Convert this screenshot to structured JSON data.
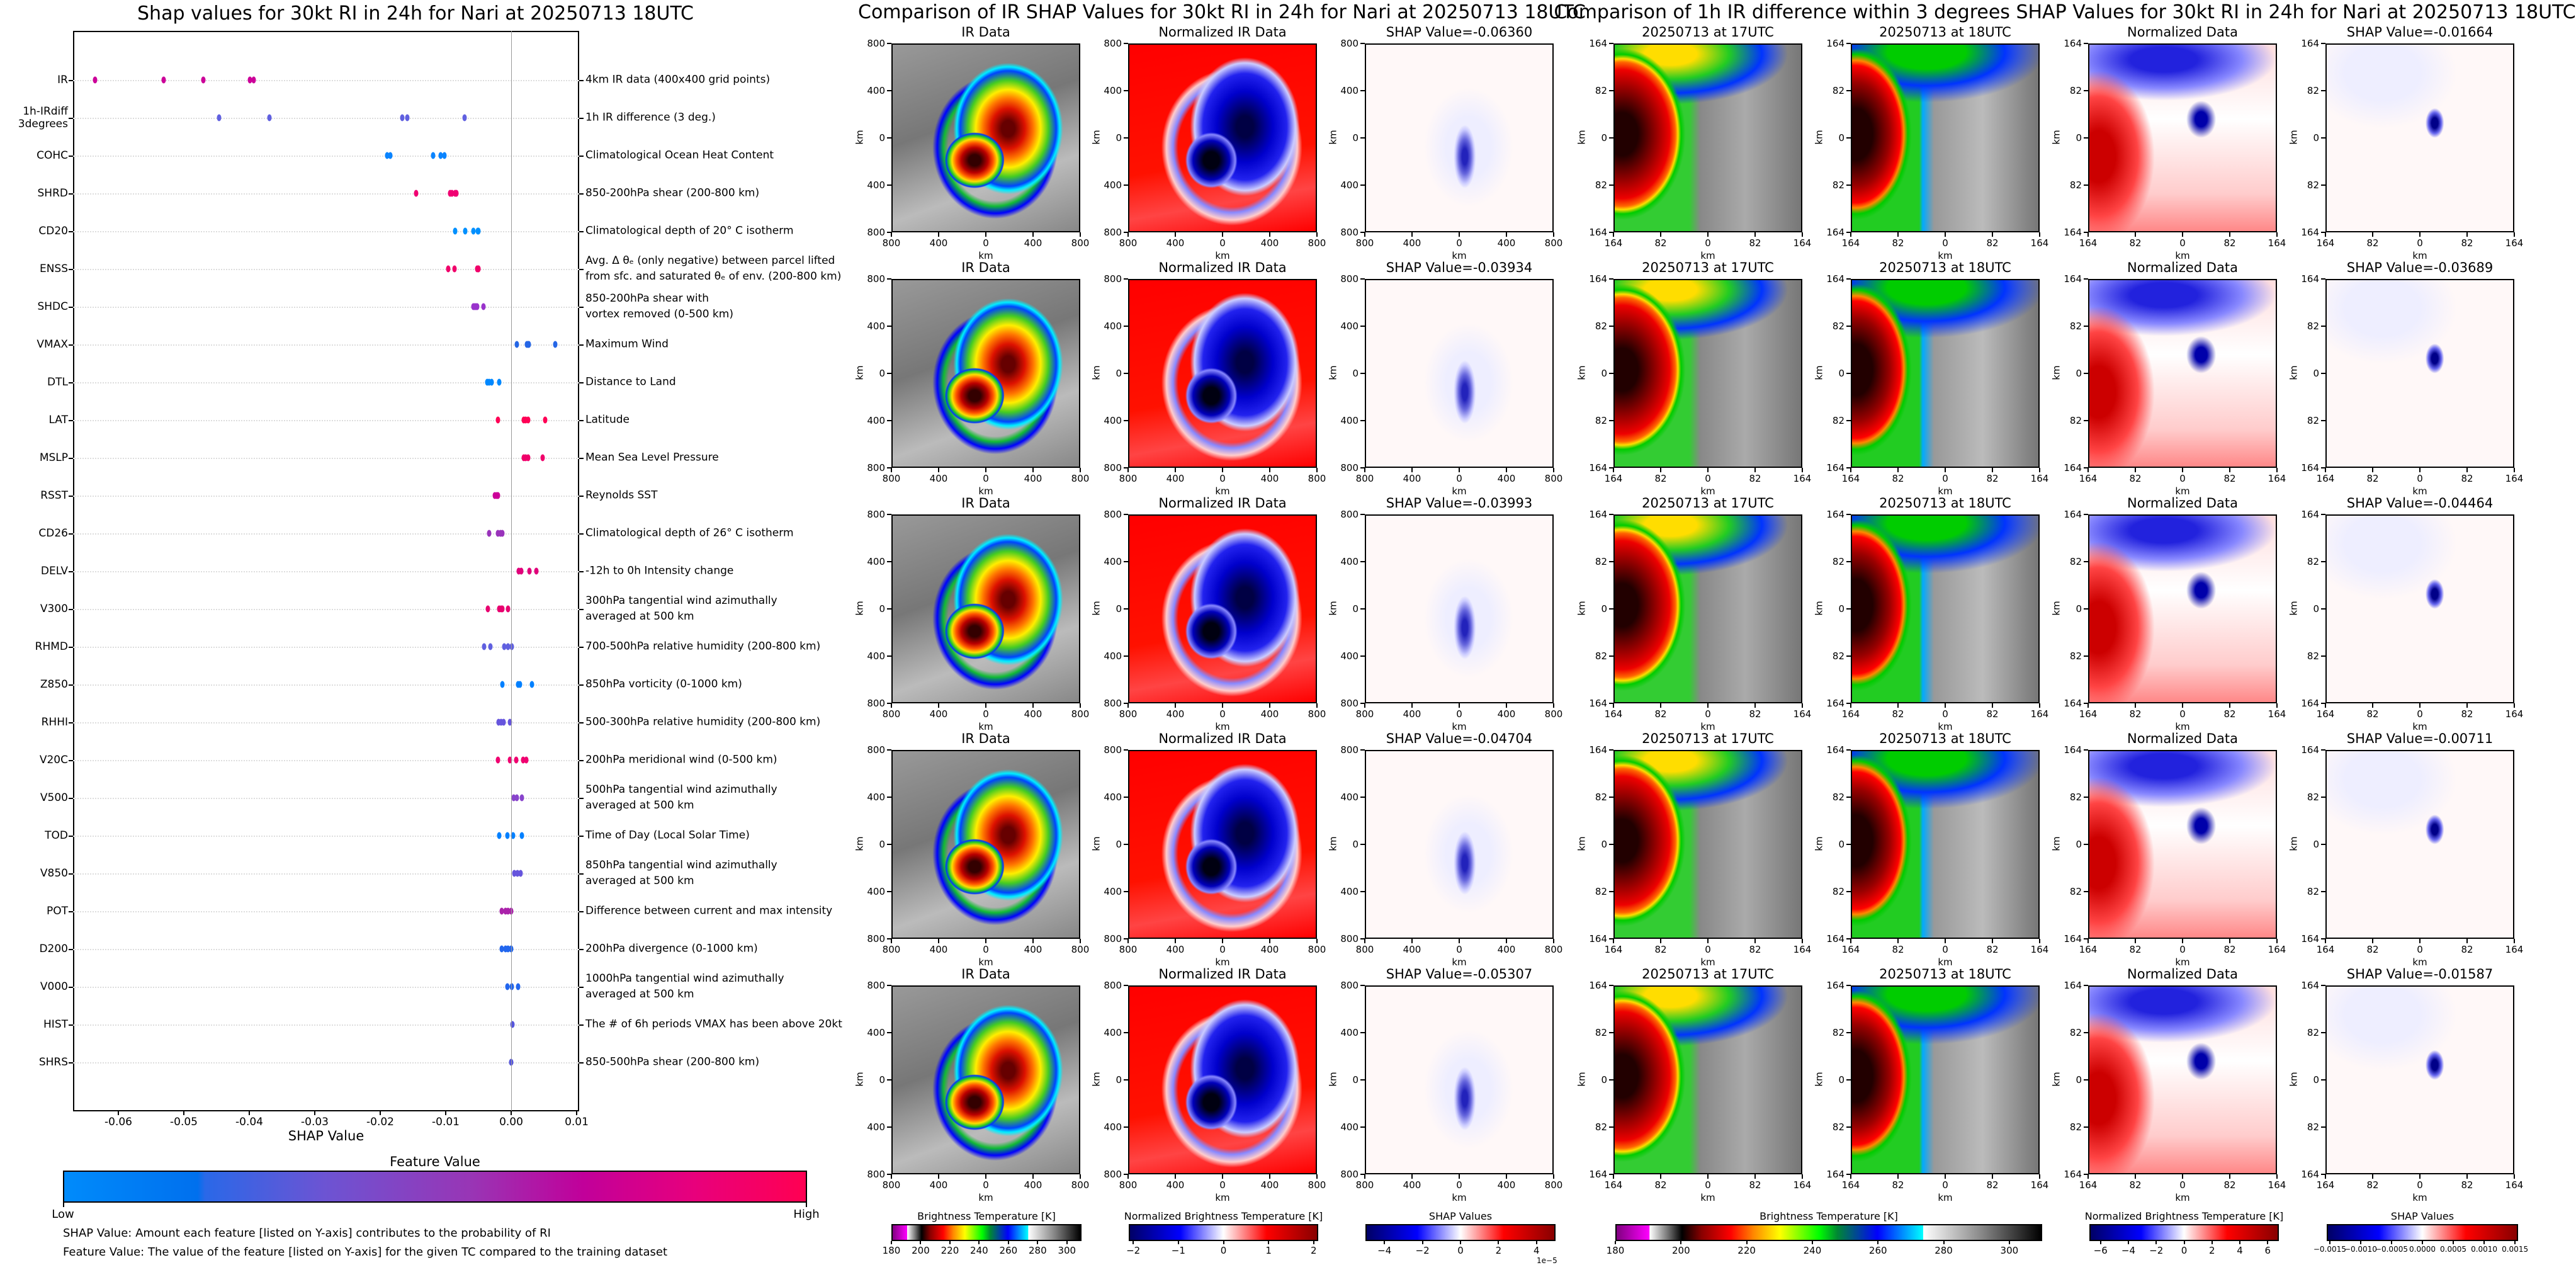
{
  "shap_plot": {
    "title": "Shap values for 30kt RI in 24h for Nari at 20250713 18UTC",
    "xlabel": "SHAP Value",
    "xticks": [
      "-0.06",
      "-0.05",
      "-0.04",
      "-0.03",
      "-0.02",
      "-0.01",
      "0.00",
      "0.01"
    ]
  },
  "feature_colorbar": {
    "title": "Feature Value",
    "low": "Low",
    "high": "High"
  },
  "notes": [
    "SHAP Value: Amount each feature [listed on Y-axis] contributes to the probability of RI",
    "Feature Value: The value of the feature [listed on Y-axis] for the given TC compared to the training dataset"
  ],
  "chart_data": {
    "type": "scatter",
    "title": "Shap values for 30kt RI in 24h for Nari at 20250713 18UTC",
    "xlabel": "SHAP Value",
    "ylabel": "",
    "xlim": [
      -0.0669,
      0.0104
    ],
    "xticks": [
      -0.06,
      -0.05,
      -0.04,
      -0.03,
      -0.02,
      -0.01,
      0.0,
      0.01
    ],
    "grid": "horizontal dotted",
    "legend": "colorbar bottom (Feature Value: Low to High)",
    "features": [
      {
        "name": "IR",
        "desc": "4km IR data (400x400 grid points)",
        "color": "#cc0099",
        "values": [
          -0.0636,
          -0.05307,
          -0.04704,
          -0.03993,
          -0.03934
        ]
      },
      {
        "name": "1h-IRdiff\n3degrees",
        "desc": "1h IR difference (3 deg.)",
        "color": "#6060e0",
        "values": [
          -0.04464,
          -0.03689,
          -0.01664,
          -0.01587,
          -0.00711
        ]
      },
      {
        "name": "COHC",
        "desc": "Climatological Ocean Heat Content",
        "color": "#0a84ff",
        "values": [
          -0.0189,
          -0.0185,
          -0.0119,
          -0.0108,
          -0.0102
        ]
      },
      {
        "name": "SHRD",
        "desc": "850-200hPa shear (200-800 km)",
        "color": "#f00072",
        "values": [
          -0.0145,
          -0.0093,
          -0.009,
          -0.0086,
          -0.0084
        ]
      },
      {
        "name": "CD20",
        "desc": "Climatological depth of 20° C isotherm",
        "color": "#0090ff",
        "values": [
          -0.0086,
          -0.007,
          -0.0058,
          -0.0051,
          -0.005
        ]
      },
      {
        "name": "ENSS",
        "desc": "Avg. Δ θₑ (only negative) between parcel lifted\nfrom sfc. and saturated θₑ of env. (200-800 km)",
        "color": "#f0006a",
        "values": [
          -0.0096,
          -0.0087,
          -0.0052,
          -0.005,
          -0.005
        ]
      },
      {
        "name": "SHDC",
        "desc": "850-200hPa shear with\nvortex removed (0-500 km)",
        "color": "#9933cc",
        "values": [
          -0.0058,
          -0.0056,
          -0.0054,
          -0.0052,
          -0.0042
        ]
      },
      {
        "name": "VMAX",
        "desc": "Maximum Wind",
        "color": "#2566e6",
        "values": [
          0.0009,
          0.0024,
          0.0026,
          0.0027,
          0.0067
        ]
      },
      {
        "name": "DTL",
        "desc": "Distance to Land",
        "color": "#0088ff",
        "values": [
          -0.0037,
          -0.0034,
          -0.003,
          -0.0018
        ]
      },
      {
        "name": "LAT",
        "desc": "Latitude",
        "color": "#ff0055",
        "values": [
          -0.002,
          0.0019,
          0.0022,
          0.0026,
          0.0052
        ]
      },
      {
        "name": "MSLP",
        "desc": "Mean Sea Level Pressure",
        "color": "#f0006a",
        "values": [
          0.0019,
          0.0022,
          0.0026,
          0.0048
        ]
      },
      {
        "name": "RSST",
        "desc": "Reynolds SST",
        "color": "#cc0099",
        "values": [
          -0.0025,
          -0.0022,
          -0.002
        ]
      },
      {
        "name": "CD26",
        "desc": "Climatological depth of 26° C isotherm",
        "color": "#9933bb",
        "values": [
          -0.0034,
          -0.002,
          -0.0016,
          -0.0013
        ]
      },
      {
        "name": "DELV",
        "desc": "-12h to 0h Intensity change",
        "color": "#e0007a",
        "values": [
          0.0012,
          0.0015,
          0.0028,
          0.0038
        ]
      },
      {
        "name": "V300",
        "desc": "300hPa tangential wind azimuthally\naveraged at 500 km",
        "color": "#e8006f",
        "values": [
          -0.0036,
          -0.0018,
          -0.0015,
          -0.0013,
          -0.0005
        ]
      },
      {
        "name": "RHMD",
        "desc": "700-500hPa relative humidity (200-800 km)",
        "color": "#6060e0",
        "values": [
          -0.0041,
          -0.0032,
          -0.0011,
          -0.0005,
          0.0001
        ]
      },
      {
        "name": "Z850",
        "desc": "850hPa vorticity (0-1000 km)",
        "color": "#0080ff",
        "values": [
          -0.0013,
          0.0011,
          0.0013,
          0.0032
        ]
      },
      {
        "name": "RHHI",
        "desc": "500-300hPa relative humidity (200-800 km)",
        "color": "#6655dd",
        "values": [
          -0.0019,
          -0.0015,
          -0.0012,
          -0.0002
        ]
      },
      {
        "name": "V20C",
        "desc": "200hPa meridional wind (0-500 km)",
        "color": "#f00070",
        "values": [
          -0.002,
          -0.0002,
          0.0008,
          0.0018,
          0.0023
        ]
      },
      {
        "name": "V500",
        "desc": "500hPa tangential wind azimuthally\naveraged at 500 km",
        "color": "#8844cc",
        "values": [
          0.0004,
          0.0009,
          0.0016
        ]
      },
      {
        "name": "TOD",
        "desc": "Time of Day (Local Solar Time)",
        "color": "#0080ff",
        "values": [
          -0.0018,
          -0.0006,
          0.0003,
          0.0016
        ]
      },
      {
        "name": "V850",
        "desc": "850hPa tangential wind azimuthally\naveraged at 500 km",
        "color": "#6655dd",
        "values": [
          0.0005,
          0.001,
          0.0014
        ]
      },
      {
        "name": "POT",
        "desc": "Difference between current and max intensity",
        "color": "#aa22aa",
        "values": [
          -0.0014,
          -0.0009,
          -0.0005,
          0.0
        ]
      },
      {
        "name": "D200",
        "desc": "200hPa divergence (0-1000 km)",
        "color": "#2266ee",
        "values": [
          -0.0014,
          -0.0009,
          -0.0005,
          0.0
        ]
      },
      {
        "name": "V000",
        "desc": "1000hPa tangential wind azimuthally\naveraged at 500 km",
        "color": "#2266ee",
        "values": [
          -0.0006,
          0.0001,
          0.0011
        ]
      },
      {
        "name": "HIST",
        "desc": "The # of 6h periods VMAX has been above 20kt",
        "color": "#5555dd",
        "values": [
          0.0002
        ]
      },
      {
        "name": "SHRS",
        "desc": "850-500hPa shear (200-800 km)",
        "color": "#5555dd",
        "values": [
          0.0
        ]
      }
    ]
  },
  "ir_section": {
    "title": "Comparison of IR SHAP Values for 30kt RI in 24h for Nari at 20250713 18UTC",
    "columns": [
      "IR Data",
      "Normalized IR Data"
    ],
    "shap_titles": [
      "SHAP Value=-0.06360",
      "SHAP Value=-0.03934",
      "SHAP Value=-0.03993",
      "SHAP Value=-0.04704",
      "SHAP Value=-0.05307"
    ],
    "ticks": [
      "800",
      "400",
      "0",
      "400",
      "800"
    ],
    "axis_label": "km",
    "colorbars": [
      {
        "title": "Brightness Temperature [K]",
        "ticks": [
          "180",
          "200",
          "220",
          "240",
          "260",
          "280",
          "300"
        ],
        "range": [
          180,
          310
        ],
        "tickvals": [
          180,
          200,
          220,
          240,
          260,
          280,
          300
        ],
        "cmap": "cm-bt"
      },
      {
        "title": "Normalized Brightness Temperature [K]",
        "ticks": [
          "−2",
          "−1",
          "0",
          "1",
          "2"
        ],
        "range": [
          -2.1,
          2.1
        ],
        "tickvals": [
          -2,
          -1,
          0,
          1,
          2
        ],
        "cmap": "cm-bwr"
      },
      {
        "title": "SHAP Values",
        "ticks": [
          "−4",
          "−2",
          "0",
          "2",
          "4"
        ],
        "range": [
          -5,
          5
        ],
        "tickvals": [
          -4,
          -2,
          0,
          2,
          4
        ],
        "cmap": "cm-bwr",
        "offset": "1e−5"
      }
    ]
  },
  "diff_section": {
    "title": "Comparison of 1h IR difference within 3 degrees SHAP Values for 30kt RI in 24h for Nari at 20250713 18UTC",
    "columns": [
      "20250713 at 17UTC",
      "20250713 at 18UTC",
      "Normalized Data"
    ],
    "shap_titles": [
      "SHAP Value=-0.01664",
      "SHAP Value=-0.03689",
      "SHAP Value=-0.04464",
      "SHAP Value=-0.00711",
      "SHAP Value=-0.01587"
    ],
    "ticks": [
      "164",
      "82",
      "0",
      "82",
      "164"
    ],
    "axis_label": "km",
    "colorbars": [
      {
        "title": "Brightness Temperature [K]",
        "ticks": [
          "180",
          "200",
          "220",
          "240",
          "260",
          "280",
          "300"
        ],
        "range": [
          180,
          310
        ],
        "tickvals": [
          180,
          200,
          220,
          240,
          260,
          280,
          300
        ],
        "cmap": "cm-bt"
      },
      {
        "title": "Normalized Brightness Temperature [K]",
        "ticks": [
          "−6",
          "−4",
          "−2",
          "0",
          "2",
          "4",
          "6"
        ],
        "range": [
          -6.8,
          6.8
        ],
        "tickvals": [
          -6,
          -4,
          -2,
          0,
          2,
          4,
          6
        ],
        "cmap": "cm-bwr"
      },
      {
        "title": "SHAP Values",
        "ticks": [
          "−0.0015",
          "−0.0010",
          "−0.0005",
          "0.0000",
          "0.0005",
          "0.0010",
          "0.0015"
        ],
        "range": [
          -0.00155,
          0.00155
        ],
        "tickvals": [
          -0.0015,
          -0.001,
          -0.0005,
          0,
          0.0005,
          0.001,
          0.0015
        ],
        "cmap": "cm-bwr"
      }
    ]
  }
}
